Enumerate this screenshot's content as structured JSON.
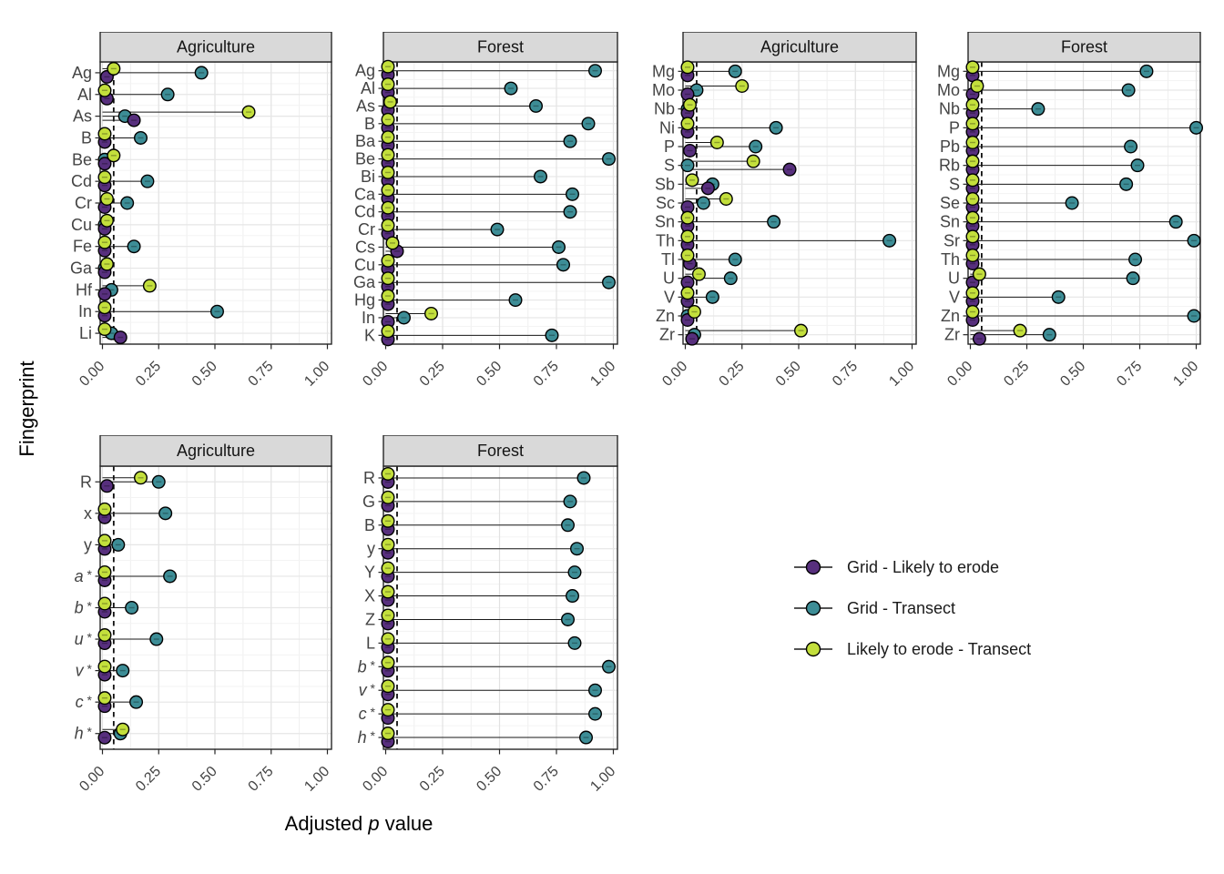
{
  "figure": {
    "ylabel": "Fingerprint",
    "xlabel_pre": "Adjusted ",
    "xlabel_italic": "p",
    "xlabel_post": " value"
  },
  "legend": {
    "items": [
      {
        "label": "Grid - Likely to erode",
        "color": "#572f7d"
      },
      {
        "label": "Grid - Transect",
        "color": "#3d8d96"
      },
      {
        "label": "Likely to erode - Transect",
        "color": "#c3df3c"
      }
    ]
  },
  "axis": {
    "xticks": [
      "0.00",
      "0.25",
      "0.50",
      "0.75",
      "1.00"
    ],
    "xtick_values": [
      0,
      0.25,
      0.5,
      0.75,
      1
    ],
    "xlim": [
      0,
      1
    ],
    "significance_line": 0.05
  },
  "chart_meta": {
    "type": "lollipop-dot-plot",
    "series_order": [
      "Grid - Likely to erode",
      "Grid - Transect",
      "Likely to erode - Transect"
    ],
    "values_order_note": "each row's values array is [Grid - Likely to erode, Grid - Transect, Likely to erode - Transect]"
  },
  "chart_data": [
    {
      "type": "lollipop",
      "facet": "Agriculture",
      "rows": [
        {
          "label": "Ag",
          "italic": false,
          "values": [
            0.02,
            0.44,
            0.05
          ]
        },
        {
          "label": "Al",
          "italic": false,
          "values": [
            0.02,
            0.29,
            0.01
          ]
        },
        {
          "label": "As",
          "italic": false,
          "values": [
            0.14,
            0.1,
            0.65
          ]
        },
        {
          "label": "B",
          "italic": false,
          "values": [
            0.01,
            0.17,
            0.01
          ]
        },
        {
          "label": "Be",
          "italic": false,
          "values": [
            0.01,
            0.01,
            0.05
          ]
        },
        {
          "label": "Cd",
          "italic": false,
          "values": [
            0.01,
            0.2,
            0.01
          ]
        },
        {
          "label": "Cr",
          "italic": false,
          "values": [
            0.01,
            0.11,
            0.02
          ]
        },
        {
          "label": "Cu",
          "italic": false,
          "values": [
            0.01,
            0.01,
            0.02
          ]
        },
        {
          "label": "Fe",
          "italic": false,
          "values": [
            0.01,
            0.14,
            0.01
          ]
        },
        {
          "label": "Ga",
          "italic": false,
          "values": [
            0.01,
            0.01,
            0.02
          ]
        },
        {
          "label": "Hf",
          "italic": false,
          "values": [
            0.01,
            0.04,
            0.21
          ]
        },
        {
          "label": "In",
          "italic": false,
          "values": [
            0.01,
            0.51,
            0.01
          ]
        },
        {
          "label": "Li",
          "italic": false,
          "values": [
            0.08,
            0.04,
            0.01
          ]
        }
      ]
    },
    {
      "type": "lollipop",
      "facet": "Forest",
      "rows": [
        {
          "label": "Ag",
          "italic": false,
          "values": [
            0.01,
            0.92,
            0.01
          ]
        },
        {
          "label": "Al",
          "italic": false,
          "values": [
            0.01,
            0.55,
            0.01
          ]
        },
        {
          "label": "As",
          "italic": false,
          "values": [
            0.01,
            0.66,
            0.02
          ]
        },
        {
          "label": "B",
          "italic": false,
          "values": [
            0.01,
            0.89,
            0.01
          ]
        },
        {
          "label": "Ba",
          "italic": false,
          "values": [
            0.01,
            0.81,
            0.01
          ]
        },
        {
          "label": "Be",
          "italic": false,
          "values": [
            0.01,
            0.98,
            0.01
          ]
        },
        {
          "label": "Bi",
          "italic": false,
          "values": [
            0.01,
            0.68,
            0.01
          ]
        },
        {
          "label": "Ca",
          "italic": false,
          "values": [
            0.01,
            0.82,
            0.01
          ]
        },
        {
          "label": "Cd",
          "italic": false,
          "values": [
            0.01,
            0.81,
            0.01
          ]
        },
        {
          "label": "Cr",
          "italic": false,
          "values": [
            0.01,
            0.49,
            0.01
          ]
        },
        {
          "label": "Cs",
          "italic": false,
          "values": [
            0.05,
            0.76,
            0.03
          ]
        },
        {
          "label": "Cu",
          "italic": false,
          "values": [
            0.01,
            0.78,
            0.01
          ]
        },
        {
          "label": "Ga",
          "italic": false,
          "values": [
            0.01,
            0.98,
            0.01
          ]
        },
        {
          "label": "Hg",
          "italic": false,
          "values": [
            0.01,
            0.57,
            0.01
          ]
        },
        {
          "label": "In",
          "italic": false,
          "values": [
            0.01,
            0.08,
            0.2
          ]
        },
        {
          "label": "K",
          "italic": false,
          "values": [
            0.01,
            0.73,
            0.01
          ]
        }
      ]
    },
    {
      "type": "lollipop",
      "facet": "Agriculture",
      "rows": [
        {
          "label": "Mg",
          "italic": false,
          "values": [
            0.01,
            0.22,
            0.01
          ]
        },
        {
          "label": "Mo",
          "italic": false,
          "values": [
            0.01,
            0.05,
            0.25
          ]
        },
        {
          "label": "Nb",
          "italic": false,
          "values": [
            0.01,
            0.01,
            0.02
          ]
        },
        {
          "label": "Ni",
          "italic": false,
          "values": [
            0.01,
            0.4,
            0.01
          ]
        },
        {
          "label": "P",
          "italic": false,
          "values": [
            0.02,
            0.31,
            0.14
          ]
        },
        {
          "label": "S",
          "italic": false,
          "values": [
            0.46,
            0.01,
            0.3
          ]
        },
        {
          "label": "Sb",
          "italic": false,
          "values": [
            0.1,
            0.12,
            0.03
          ]
        },
        {
          "label": "Sc",
          "italic": false,
          "values": [
            0.01,
            0.08,
            0.18
          ]
        },
        {
          "label": "Sn",
          "italic": false,
          "values": [
            0.01,
            0.39,
            0.01
          ]
        },
        {
          "label": "Th",
          "italic": false,
          "values": [
            0.01,
            0.9,
            0.01
          ]
        },
        {
          "label": "Tl",
          "italic": false,
          "values": [
            0.02,
            0.22,
            0.01
          ]
        },
        {
          "label": "U",
          "italic": false,
          "values": [
            0.01,
            0.2,
            0.06
          ]
        },
        {
          "label": "V",
          "italic": false,
          "values": [
            0.01,
            0.12,
            0.01
          ]
        },
        {
          "label": "Zn",
          "italic": false,
          "values": [
            0.01,
            0.01,
            0.04
          ]
        },
        {
          "label": "Zr",
          "italic": false,
          "values": [
            0.03,
            0.04,
            0.51
          ]
        }
      ]
    },
    {
      "type": "lollipop",
      "facet": "Forest",
      "rows": [
        {
          "label": "Mg",
          "italic": false,
          "values": [
            0.01,
            0.78,
            0.01
          ]
        },
        {
          "label": "Mo",
          "italic": false,
          "values": [
            0.01,
            0.7,
            0.03
          ]
        },
        {
          "label": "Nb",
          "italic": false,
          "values": [
            0.01,
            0.3,
            0.01
          ]
        },
        {
          "label": "P",
          "italic": false,
          "values": [
            0.01,
            1.0,
            0.01
          ]
        },
        {
          "label": "Pb",
          "italic": false,
          "values": [
            0.01,
            0.71,
            0.01
          ]
        },
        {
          "label": "Rb",
          "italic": false,
          "values": [
            0.01,
            0.74,
            0.01
          ]
        },
        {
          "label": "S",
          "italic": false,
          "values": [
            0.01,
            0.69,
            0.01
          ]
        },
        {
          "label": "Se",
          "italic": false,
          "values": [
            0.01,
            0.45,
            0.01
          ]
        },
        {
          "label": "Sn",
          "italic": false,
          "values": [
            0.01,
            0.91,
            0.01
          ]
        },
        {
          "label": "Sr",
          "italic": false,
          "values": [
            0.01,
            0.99,
            0.01
          ]
        },
        {
          "label": "Th",
          "italic": false,
          "values": [
            0.01,
            0.73,
            0.01
          ]
        },
        {
          "label": "U",
          "italic": false,
          "values": [
            0.01,
            0.72,
            0.04
          ]
        },
        {
          "label": "V",
          "italic": false,
          "values": [
            0.01,
            0.39,
            0.01
          ]
        },
        {
          "label": "Zn",
          "italic": false,
          "values": [
            0.01,
            0.99,
            0.01
          ]
        },
        {
          "label": "Zr",
          "italic": false,
          "values": [
            0.04,
            0.35,
            0.22
          ]
        }
      ]
    },
    {
      "type": "lollipop",
      "facet": "Agriculture",
      "rows": [
        {
          "label": "R",
          "italic": false,
          "values": [
            0.02,
            0.25,
            0.17
          ]
        },
        {
          "label": "x",
          "italic": false,
          "values": [
            0.01,
            0.28,
            0.01
          ]
        },
        {
          "label": "y",
          "italic": false,
          "values": [
            0.01,
            0.07,
            0.01
          ]
        },
        {
          "label": "a *",
          "italic": true,
          "values": [
            0.01,
            0.3,
            0.01
          ]
        },
        {
          "label": "b *",
          "italic": true,
          "values": [
            0.01,
            0.13,
            0.01
          ]
        },
        {
          "label": "u *",
          "italic": true,
          "values": [
            0.01,
            0.24,
            0.01
          ]
        },
        {
          "label": "v *",
          "italic": true,
          "values": [
            0.01,
            0.09,
            0.01
          ]
        },
        {
          "label": "c *",
          "italic": true,
          "values": [
            0.01,
            0.15,
            0.01
          ]
        },
        {
          "label": "h *",
          "italic": true,
          "values": [
            0.01,
            0.08,
            0.09
          ]
        }
      ]
    },
    {
      "type": "lollipop",
      "facet": "Forest",
      "rows": [
        {
          "label": "R",
          "italic": false,
          "values": [
            0.01,
            0.87,
            0.01
          ]
        },
        {
          "label": "G",
          "italic": false,
          "values": [
            0.01,
            0.81,
            0.01
          ]
        },
        {
          "label": "B",
          "italic": false,
          "values": [
            0.01,
            0.8,
            0.01
          ]
        },
        {
          "label": "y",
          "italic": false,
          "values": [
            0.01,
            0.84,
            0.01
          ]
        },
        {
          "label": "Y",
          "italic": false,
          "values": [
            0.01,
            0.83,
            0.01
          ]
        },
        {
          "label": "X",
          "italic": false,
          "values": [
            0.01,
            0.82,
            0.01
          ]
        },
        {
          "label": "Z",
          "italic": false,
          "values": [
            0.01,
            0.8,
            0.01
          ]
        },
        {
          "label": "L",
          "italic": false,
          "values": [
            0.01,
            0.83,
            0.01
          ]
        },
        {
          "label": "b *",
          "italic": true,
          "values": [
            0.01,
            0.98,
            0.01
          ]
        },
        {
          "label": "v *",
          "italic": true,
          "values": [
            0.01,
            0.92,
            0.01
          ]
        },
        {
          "label": "c *",
          "italic": true,
          "values": [
            0.01,
            0.92,
            0.01
          ]
        },
        {
          "label": "h *",
          "italic": true,
          "values": [
            0.01,
            0.88,
            0.01
          ]
        }
      ]
    }
  ]
}
